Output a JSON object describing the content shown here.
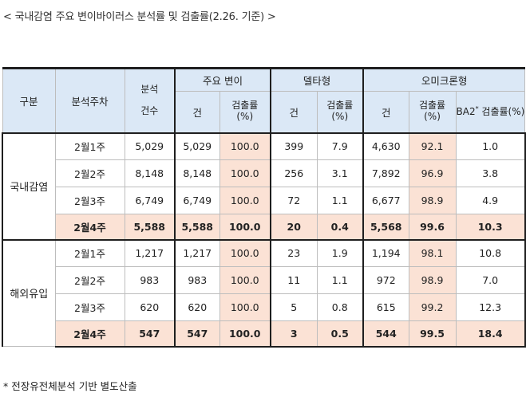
{
  "title": "< 국내감염 주요 변이바이러스 분석률 및 검출률(2.26. 기준) >",
  "header": {
    "group": "구분",
    "week": "분석주차",
    "analysis_line1": "분석",
    "analysis_line2": "건수",
    "major_variant": "주요 변이",
    "delta": "델타형",
    "omicron": "오미크론형",
    "count": "건",
    "detect_rate": "검출률",
    "unit": "(%)",
    "ba2": "BA2",
    "ba2_star": "*",
    "ba2_rate": "검출률(%)"
  },
  "sections": [
    {
      "label": "국내감염",
      "rows": [
        {
          "week": "2월1주",
          "analysis": "5,029",
          "major_n": "5,029",
          "major_rate": "100.0",
          "delta_n": "399",
          "delta_rate": "7.9",
          "omi_n": "4,630",
          "omi_rate": "92.1",
          "ba2": "1.0"
        },
        {
          "week": "2월2주",
          "analysis": "8,148",
          "major_n": "8,148",
          "major_rate": "100.0",
          "delta_n": "256",
          "delta_rate": "3.1",
          "omi_n": "7,892",
          "omi_rate": "96.9",
          "ba2": "3.8"
        },
        {
          "week": "2월3주",
          "analysis": "6,749",
          "major_n": "6,749",
          "major_rate": "100.0",
          "delta_n": "72",
          "delta_rate": "1.1",
          "omi_n": "6,677",
          "omi_rate": "98.9",
          "ba2": "4.9"
        },
        {
          "week": "2월4주",
          "analysis": "5,588",
          "major_n": "5,588",
          "major_rate": "100.0",
          "delta_n": "20",
          "delta_rate": "0.4",
          "omi_n": "5,568",
          "omi_rate": "99.6",
          "ba2": "10.3"
        }
      ]
    },
    {
      "label": "해외유입",
      "rows": [
        {
          "week": "2월1주",
          "analysis": "1,217",
          "major_n": "1,217",
          "major_rate": "100.0",
          "delta_n": "23",
          "delta_rate": "1.9",
          "omi_n": "1,194",
          "omi_rate": "98.1",
          "ba2": "10.8"
        },
        {
          "week": "2월2주",
          "analysis": "983",
          "major_n": "983",
          "major_rate": "100.0",
          "delta_n": "11",
          "delta_rate": "1.1",
          "omi_n": "972",
          "omi_rate": "98.9",
          "ba2": "7.0"
        },
        {
          "week": "2월3주",
          "analysis": "620",
          "major_n": "620",
          "major_rate": "100.0",
          "delta_n": "5",
          "delta_rate": "0.8",
          "omi_n": "615",
          "omi_rate": "99.2",
          "ba2": "12.3"
        },
        {
          "week": "2월4주",
          "analysis": "547",
          "major_n": "547",
          "major_rate": "100.0",
          "delta_n": "3",
          "delta_rate": "0.5",
          "omi_n": "544",
          "omi_rate": "99.5",
          "ba2": "18.4"
        }
      ]
    }
  ],
  "footnote": "* 전장유전체분석 기반 별도산출",
  "colors": {
    "header_bg": "#dbe8f6",
    "highlight_bg": "#fbe2d5",
    "border": "#bdbdbd",
    "strong_border": "#1f1f1f"
  }
}
